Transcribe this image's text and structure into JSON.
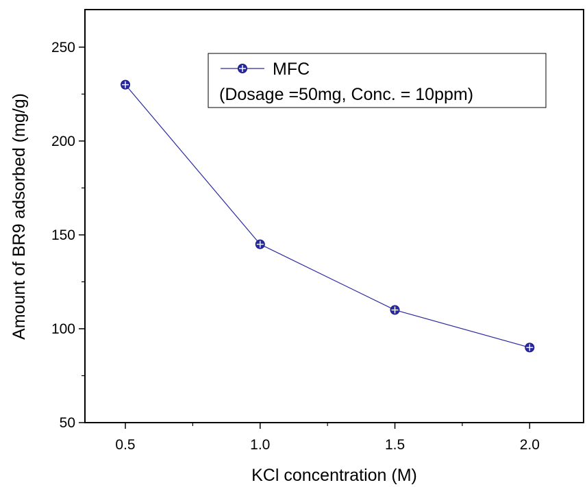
{
  "chart_data": {
    "type": "line",
    "x": [
      0.5,
      1.0,
      1.5,
      2.0
    ],
    "series": [
      {
        "name": "MFC",
        "values": [
          230,
          145,
          110,
          90
        ],
        "color": "#2a2aa0",
        "marker": "circle-plus"
      }
    ],
    "xlabel": "KCl concentration (M)",
    "ylabel": "Amount of BR9 adsorbed (mg/g)",
    "xlim": [
      0.35,
      2.2
    ],
    "ylim": [
      50,
      270
    ],
    "xticks": [
      0.5,
      1.0,
      1.5,
      2.0
    ],
    "xtick_labels": [
      "0.5",
      "1.0",
      "1.5",
      "2.0"
    ],
    "yticks": [
      50,
      100,
      150,
      200,
      250
    ],
    "ytick_labels": [
      "50",
      "100",
      "150",
      "200",
      "250"
    ],
    "legend": {
      "entries": [
        "MFC"
      ],
      "note": "(Dosage =50mg, Conc. = 10ppm)",
      "placement": "top-center"
    },
    "grid": false
  }
}
